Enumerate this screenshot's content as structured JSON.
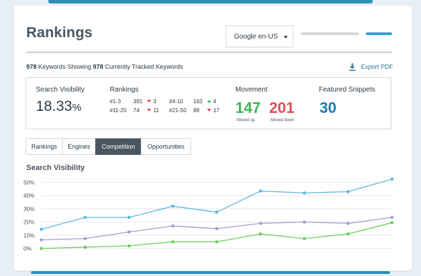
{
  "header": {
    "title": "Rankings",
    "locale_dropdown": "Google en-US"
  },
  "summary": {
    "showing_count": "978",
    "showing_text": "Keywords Showing",
    "tracked_count": "978",
    "tracked_text": "Currently Tracked Keywords",
    "export_label": "Export PDF"
  },
  "stats": {
    "visibility": {
      "label": "Search Visibility",
      "value": "18.33",
      "unit": "%"
    },
    "rankings": {
      "label": "Rankings",
      "rows": [
        {
          "range": "#1-3",
          "count": "391",
          "direction": "down",
          "change": "3"
        },
        {
          "range": "#4-10",
          "count": "163",
          "direction": "up",
          "change": "4"
        },
        {
          "range": "#11-20",
          "count": "74",
          "direction": "down",
          "change": "11"
        },
        {
          "range": "#21-50",
          "count": "88",
          "direction": "down",
          "change": "17"
        }
      ]
    },
    "movement": {
      "label": "Movement",
      "up_value": "147",
      "up_label": "Moved up",
      "down_value": "201",
      "down_label": "Moved down"
    },
    "snippets": {
      "label": "Featured Snippets",
      "value": "30"
    }
  },
  "tabs": [
    {
      "label": "Rankings",
      "active": false
    },
    {
      "label": "Engines",
      "active": false
    },
    {
      "label": "Competition",
      "active": true
    },
    {
      "label": "Opportunities",
      "active": false
    }
  ],
  "colors": {
    "accent_blue": "#38a2d1",
    "up_green": "#3cb55a",
    "down_red": "#e14c57",
    "snippet_blue": "#1f7aa6",
    "series_blue": "#5eb8dc",
    "series_purple": "#a99ad1",
    "series_green": "#6ccc5d"
  },
  "chart_title": "Search Visibility",
  "chart_data": {
    "type": "line",
    "title": "Search Visibility",
    "xlabel": "",
    "ylabel": "",
    "ylim": [
      0,
      50
    ],
    "yticks": [
      "50%",
      "40%",
      "30%",
      "20%",
      "10%",
      "0%"
    ],
    "x": [
      1,
      2,
      3,
      4,
      5,
      6,
      7,
      8,
      9
    ],
    "grid": true,
    "legend": "none",
    "series": [
      {
        "color": "#5eb8dc",
        "values": [
          14.5,
          23.5,
          23.5,
          32,
          27.5,
          43.5,
          42,
          43,
          52.5
        ]
      },
      {
        "color": "#a99ad1",
        "values": [
          6.5,
          7.5,
          12.5,
          17,
          15,
          19,
          20,
          19,
          23.5
        ]
      },
      {
        "color": "#6ccc5d",
        "values": [
          0,
          1,
          2,
          5,
          5,
          11,
          7.5,
          11,
          19.5
        ]
      }
    ]
  }
}
